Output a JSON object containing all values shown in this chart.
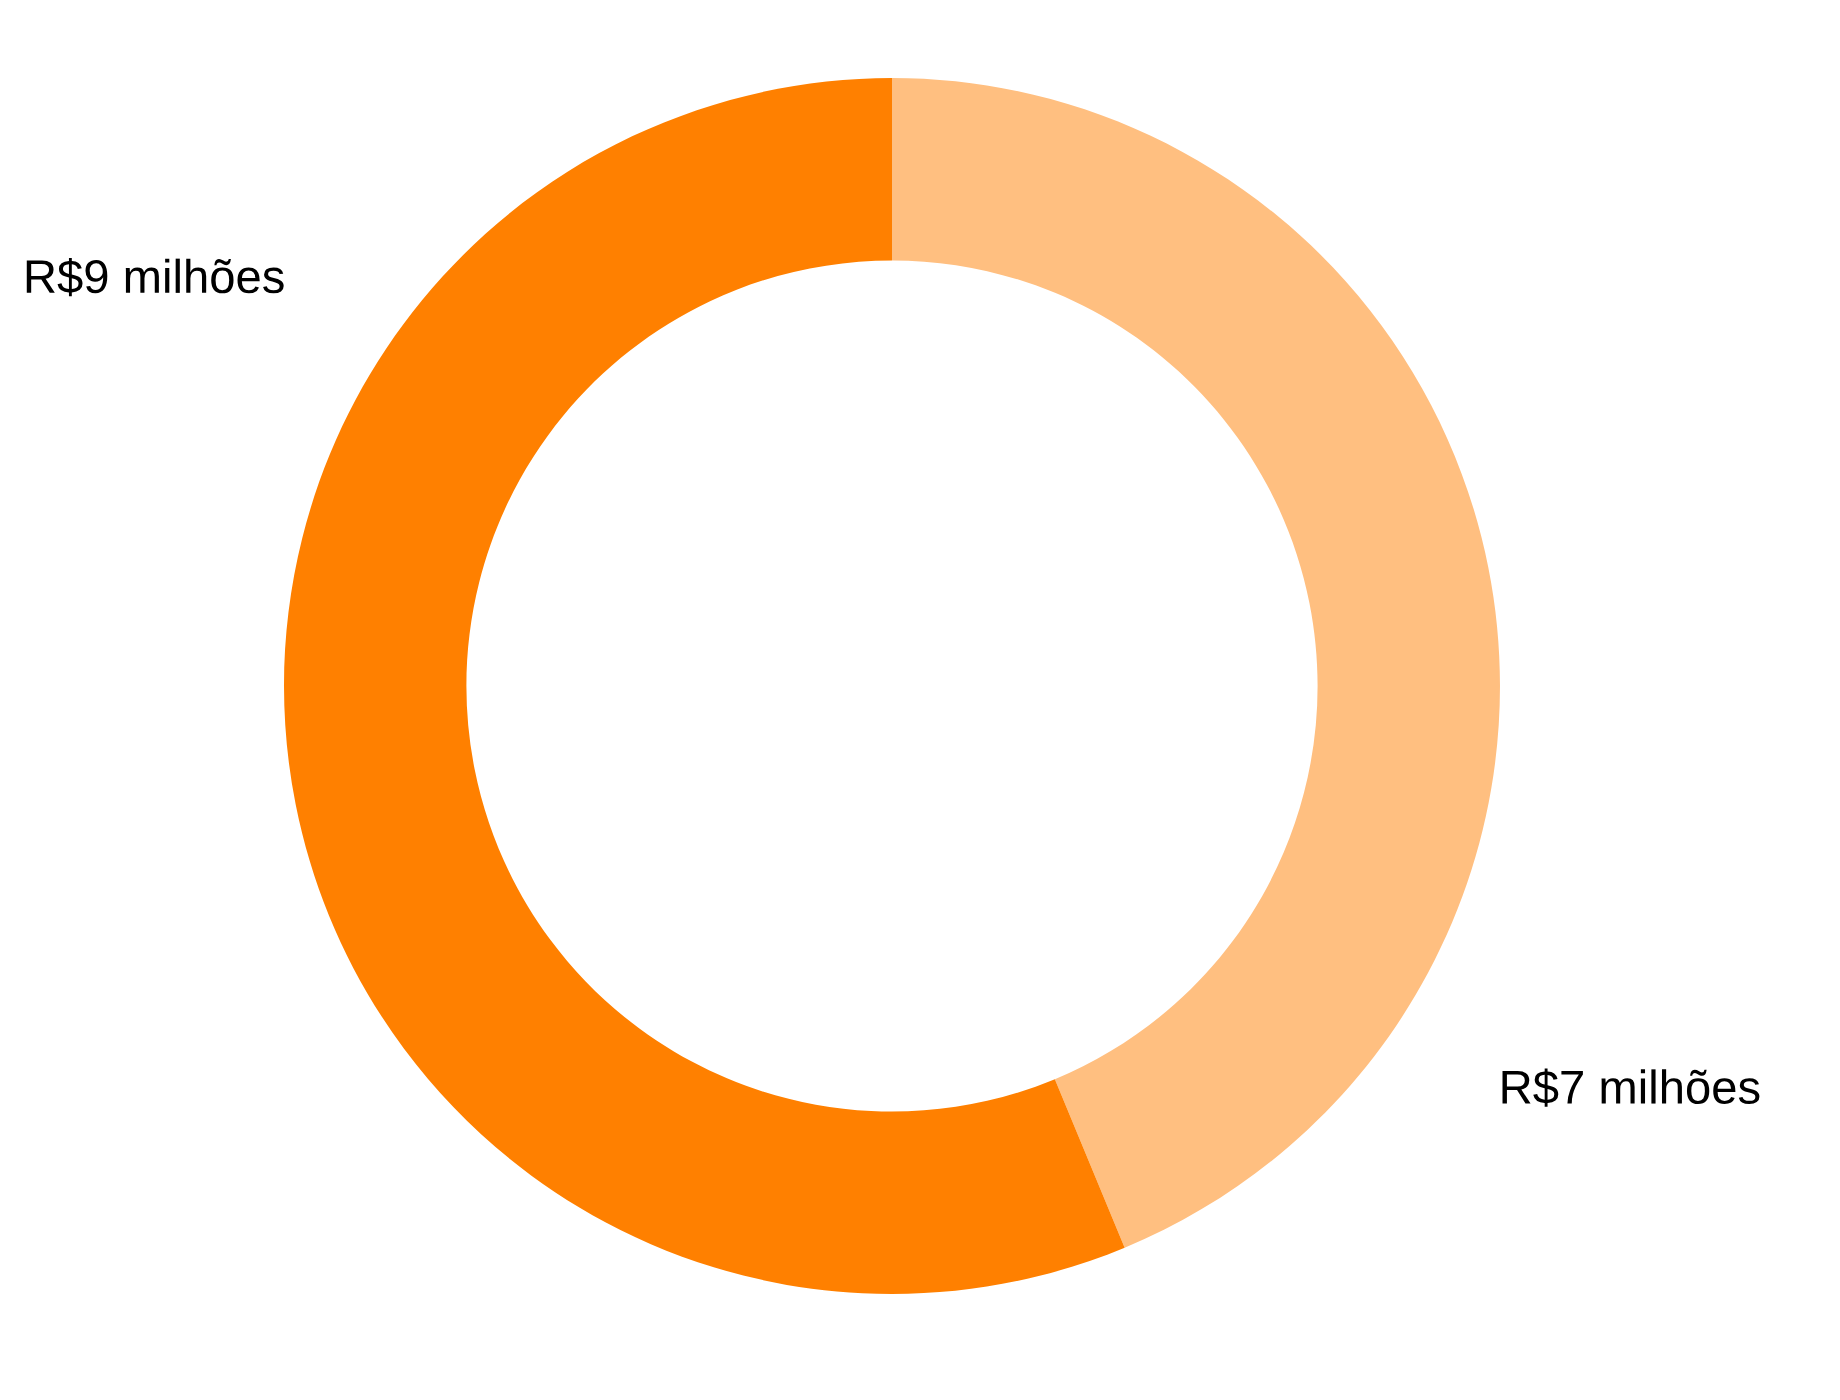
{
  "chart_data": {
    "type": "donut",
    "categories": [
      null,
      null
    ],
    "values": [
      7,
      9
    ],
    "colors": [
      "#ffbf80",
      "#ff8000"
    ],
    "value_labels": [
      "R$7 milhões",
      "R$9 milhões"
    ]
  }
}
